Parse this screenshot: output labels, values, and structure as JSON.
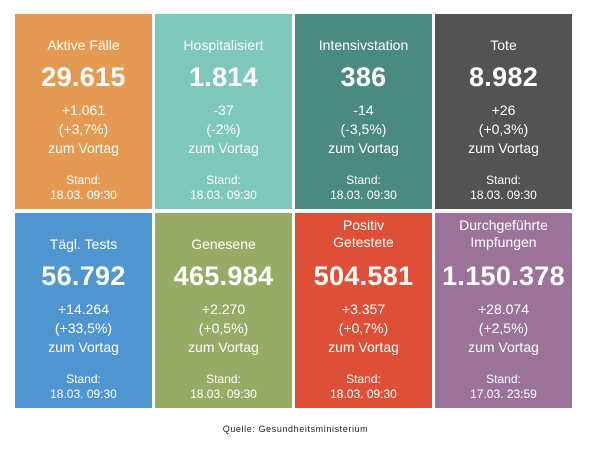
{
  "tiles": [
    {
      "title": "Aktive Fälle",
      "value": "29.615",
      "delta": "+1.061",
      "pct": "(+3,7%)",
      "suffix": "zum Vortag",
      "stand_label": "Stand:",
      "stand_date": "18.03. 09:30",
      "color": "#e49a52"
    },
    {
      "title": "Hospitalisiert",
      "value": "1.814",
      "delta": "-37",
      "pct": "(-2%)",
      "suffix": "zum Vortag",
      "stand_label": "Stand:",
      "stand_date": "18.03. 09:30",
      "color": "#7ec7bb"
    },
    {
      "title": "Intensivstation",
      "value": "386",
      "delta": "-14",
      "pct": "(-3,5%)",
      "suffix": "zum Vortag",
      "stand_label": "Stand:",
      "stand_date": "18.03. 09:30",
      "color": "#4b8a81"
    },
    {
      "title": "Tote",
      "value": "8.982",
      "delta": "+26",
      "pct": "(+0,3%)",
      "suffix": "zum Vortag",
      "stand_label": "Stand:",
      "stand_date": "18.03. 09:30",
      "color": "#535353"
    },
    {
      "title": "Tägl. Tests",
      "value": "56.792",
      "delta": "+14.264",
      "pct": "(+33,5%)",
      "suffix": "zum Vortag",
      "stand_label": "Stand:",
      "stand_date": "18.03. 09:30",
      "color": "#4f95d0"
    },
    {
      "title": "Genesene",
      "value": "465.984",
      "delta": "+2.270",
      "pct": "(+0,5%)",
      "suffix": "zum Vortag",
      "stand_label": "Stand:",
      "stand_date": "18.03. 09:30",
      "color": "#98ab66"
    },
    {
      "title_line1": "Positiv",
      "title_line2": "Getestete",
      "value": "504.581",
      "delta": "+3.357",
      "pct": "(+0,7%)",
      "suffix": "zum Vortag",
      "stand_label": "Stand:",
      "stand_date": "18.03. 09:30",
      "color": "#dd4f36"
    },
    {
      "title_line1": "Durchgeführte",
      "title_line2": "Impfungen",
      "value": "1.150.378",
      "delta": "+28.074",
      "pct": "(+2,5%)",
      "suffix": "zum Vortag",
      "stand_label": "Stand:",
      "stand_date": "17.03. 23:59",
      "color": "#9b7399"
    }
  ],
  "source": "Quelle: Gesundheitsministerium"
}
